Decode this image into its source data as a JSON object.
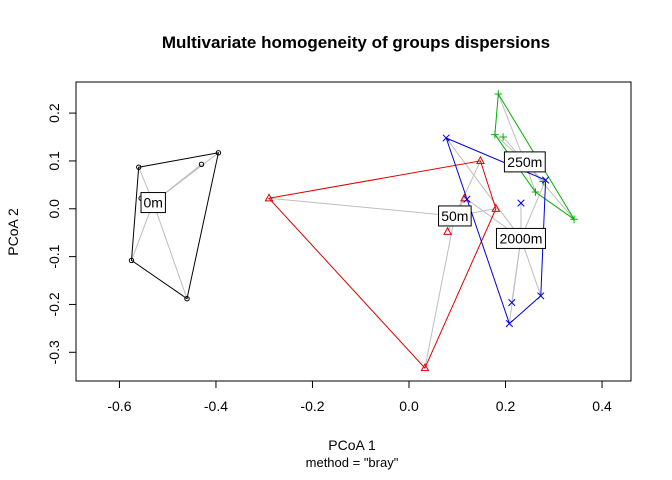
{
  "chart_data": {
    "type": "scatter",
    "title": "Multivariate homogeneity of groups dispersions",
    "xlabel": "PCoA 1",
    "ylabel": "PCoA 2",
    "subtitle": "method = \"bray\"",
    "xlim": [
      -0.69,
      0.46
    ],
    "ylim": [
      -0.36,
      0.265
    ],
    "x_ticks": [
      -0.6,
      -0.4,
      -0.2,
      0.0,
      0.2,
      0.4
    ],
    "x_tick_labels": [
      "-0.6",
      "-0.4",
      "-0.2",
      "0.0",
      "0.2",
      "0.4"
    ],
    "y_ticks": [
      -0.3,
      -0.2,
      -0.1,
      0.0,
      0.1,
      0.2
    ],
    "y_tick_labels": [
      "-0.3",
      "-0.2",
      "-0.1",
      "0.0",
      "0.1",
      "0.2"
    ],
    "groups": [
      {
        "label": "0m",
        "color": "#000000",
        "symbol": "circle",
        "centroid": [
          -0.53,
          0.013
        ],
        "points": [
          [
            -0.56,
            0.087
          ],
          [
            -0.395,
            0.117
          ],
          [
            -0.43,
            0.093
          ],
          [
            -0.555,
            0.022
          ],
          [
            -0.575,
            -0.108
          ],
          [
            -0.46,
            -0.188
          ]
        ],
        "hull": [
          [
            -0.56,
            0.087
          ],
          [
            -0.395,
            0.117
          ],
          [
            -0.46,
            -0.188
          ],
          [
            -0.575,
            -0.108
          ]
        ]
      },
      {
        "label": "50m",
        "color": "#df0000",
        "symbol": "triangle",
        "centroid": [
          0.095,
          -0.015
        ],
        "points": [
          [
            -0.29,
            0.022
          ],
          [
            0.148,
            0.1
          ],
          [
            0.115,
            0.022
          ],
          [
            0.18,
            0.0
          ],
          [
            0.08,
            -0.048
          ],
          [
            0.033,
            -0.333
          ]
        ],
        "hull": [
          [
            -0.29,
            0.022
          ],
          [
            0.148,
            0.1
          ],
          [
            0.18,
            0.0
          ],
          [
            0.033,
            -0.333
          ]
        ]
      },
      {
        "label": "250m",
        "color": "#00b000",
        "symbol": "plus",
        "centroid": [
          0.24,
          0.098
        ],
        "points": [
          [
            0.185,
            0.24
          ],
          [
            0.178,
            0.155
          ],
          [
            0.195,
            0.15
          ],
          [
            0.262,
            0.035
          ],
          [
            0.278,
            0.057
          ],
          [
            0.342,
            -0.022
          ]
        ],
        "hull": [
          [
            0.185,
            0.24
          ],
          [
            0.342,
            -0.022
          ],
          [
            0.262,
            0.035
          ],
          [
            0.178,
            0.155
          ]
        ]
      },
      {
        "label": "2000m",
        "color": "#0000d8",
        "symbol": "cross",
        "centroid": [
          0.232,
          -0.062
        ],
        "points": [
          [
            0.077,
            0.148
          ],
          [
            0.12,
            0.02
          ],
          [
            0.232,
            0.012
          ],
          [
            0.283,
            0.06
          ],
          [
            0.273,
            -0.182
          ],
          [
            0.213,
            -0.196
          ],
          [
            0.208,
            -0.24
          ]
        ],
        "hull": [
          [
            0.077,
            0.148
          ],
          [
            0.283,
            0.06
          ],
          [
            0.273,
            -0.182
          ],
          [
            0.208,
            -0.24
          ]
        ]
      }
    ],
    "spider_color": "#bebebe",
    "grid": false,
    "legend": "none"
  }
}
